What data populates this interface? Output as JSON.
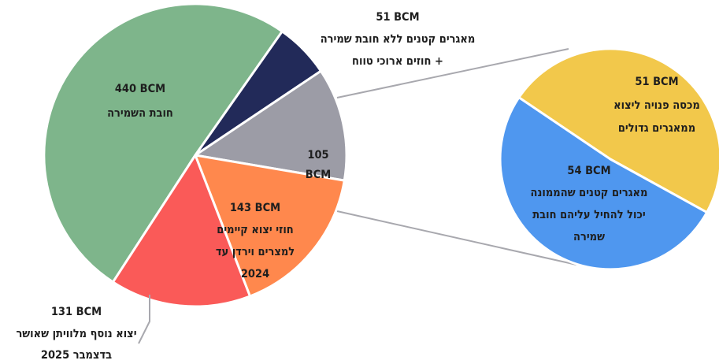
{
  "chart_data": {
    "type": "pie",
    "unit": "BCM",
    "slices": [
      {
        "value": 440,
        "value_label": "440 BCM",
        "label_lines": [
          "חובת השמירה"
        ],
        "color": "#7eb58b"
      },
      {
        "value": 51,
        "value_label": "51 BCM",
        "label_lines": [
          "מאגרים קטנים ללא חובת שמירה",
          "+ חוזים ארוכי טווח"
        ],
        "color": "#222a59"
      },
      {
        "value": 105,
        "value_label": "105",
        "label_lines": [
          "BCM"
        ],
        "color": "#9c9ca6",
        "exploded_into_subpie": true
      },
      {
        "value": 143,
        "value_label": "143 BCM",
        "label_lines": [
          "חוזי יצוא קיימים",
          "למצרים וירדן עד",
          "2024"
        ],
        "color": "#ff884d"
      },
      {
        "value": 131,
        "value_label": "131 BCM",
        "label_lines": [
          "יצוא נוסף מלוויתן שאושר",
          "בדצמבר 2025"
        ],
        "color": "#fa5a58"
      }
    ],
    "subpie": {
      "parent": "105 BCM",
      "slices": [
        {
          "value": 51,
          "value_label": "51 BCM",
          "label_lines": [
            "מכסה פנויה ליצוא",
            "ממאגרים גדולים"
          ],
          "color": "#f2c84b"
        },
        {
          "value": 54,
          "value_label": "54 BCM",
          "label_lines": [
            "מאגרים קטנים שהממונה",
            "יכול להחיל עליהם חובת",
            "שמירה"
          ],
          "color": "#4f97ef"
        }
      ]
    }
  }
}
